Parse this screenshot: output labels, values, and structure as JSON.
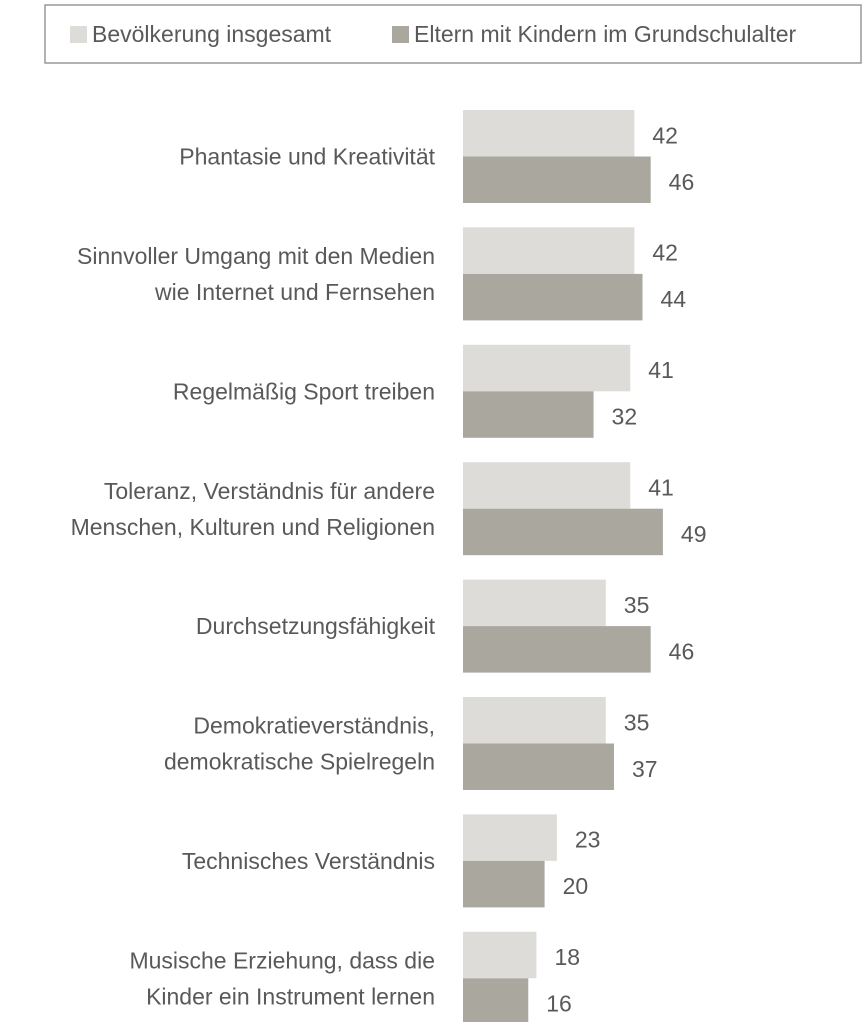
{
  "chart_data": {
    "type": "bar",
    "orientation": "horizontal",
    "categories": [
      [
        "Phantasie und Kreativität"
      ],
      [
        "Sinnvoller Umgang mit den Medien",
        "wie Internet und Fernsehen"
      ],
      [
        "Regelmäßig Sport treiben"
      ],
      [
        "Toleranz, Verständnis für andere",
        "Menschen, Kulturen und Religionen"
      ],
      [
        "Durchsetzungsfähigkeit"
      ],
      [
        "Demokratieverständnis,",
        "demokratische Spielregeln"
      ],
      [
        "Technisches Verständnis"
      ],
      [
        "Musische Erziehung, dass die",
        "Kinder ein Instrument lernen"
      ]
    ],
    "series": [
      {
        "name": "Bevölkerung insgesamt",
        "color": "#dddcd8",
        "values": [
          42,
          42,
          41,
          41,
          35,
          35,
          23,
          18
        ]
      },
      {
        "name": "Eltern mit Kindern im Grundschulalter",
        "color": "#aaa79f",
        "values": [
          46,
          44,
          32,
          49,
          46,
          37,
          20,
          16
        ]
      }
    ],
    "xlim": [
      0,
      100
    ]
  }
}
